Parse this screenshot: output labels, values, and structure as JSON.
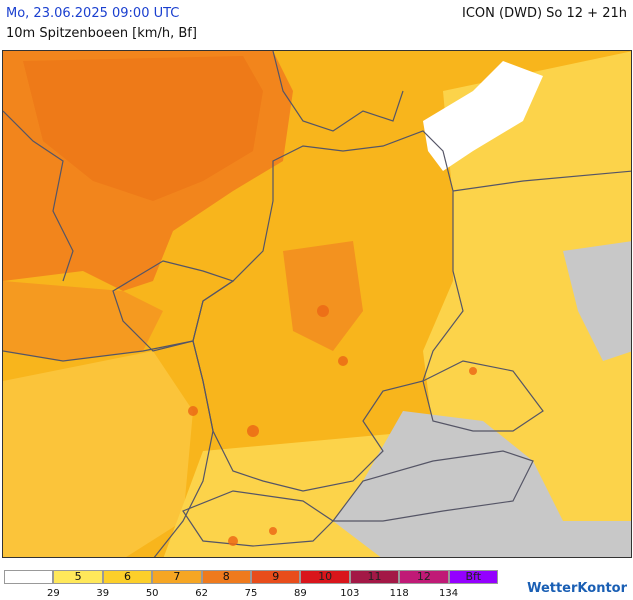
{
  "header": {
    "datetime": "Mo, 23.06.2025 09:00 UTC",
    "parameter": "10m Spitzenboeen [km/h, Bf]",
    "model_run": "ICON (DWD) So 12 + 21h"
  },
  "legend": {
    "cells": [
      {
        "label": "",
        "color": "#ffffff"
      },
      {
        "label": "5",
        "color": "#ffe85a"
      },
      {
        "label": "6",
        "color": "#fccf2a"
      },
      {
        "label": "7",
        "color": "#f6a623"
      },
      {
        "label": "8",
        "color": "#ef7a1d"
      },
      {
        "label": "9",
        "color": "#e84d1b"
      },
      {
        "label": "10",
        "color": "#d9151b"
      },
      {
        "label": "11",
        "color": "#a31846"
      },
      {
        "label": "12",
        "color": "#c01a76"
      },
      {
        "label": "Bft",
        "color": "#9400ff"
      }
    ],
    "ticks": [
      "29",
      "39",
      "50",
      "62",
      "75",
      "89",
      "103",
      "118",
      "134"
    ]
  },
  "brand": {
    "logo_text": "WetterKontor"
  },
  "colors": {
    "no_data_grey": "#c8c8c8",
    "border_line": "#555566",
    "header_blue": "#1a3fcf"
  }
}
